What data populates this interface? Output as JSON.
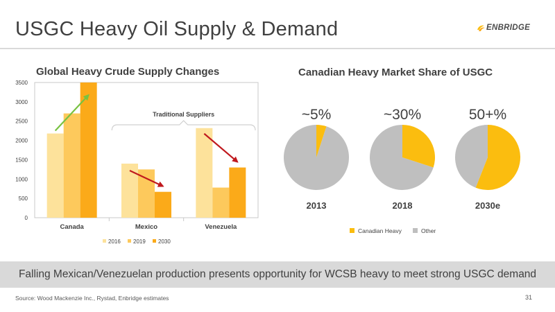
{
  "slide": {
    "title": "USGC Heavy Oil Supply & Demand",
    "logo_text": "ENBRIDGE",
    "banner": "Falling Mexican/Venezuelan production presents opportunity for WCSB heavy to meet strong USGC demand",
    "source": "Source: Wood Mackenzie Inc., Rystad, Enbridge estimates",
    "page_number": "31"
  },
  "colors": {
    "bar_2016": "#fde29b",
    "bar_2019": "#fdc95c",
    "bar_2030": "#fbaa19",
    "canadian_heavy": "#fbbd0f",
    "other": "#bfbfbf",
    "arrow_up": "#78c241",
    "arrow_down": "#c0191e"
  },
  "chart_data": [
    {
      "type": "bar",
      "title": "Global Heavy Crude Supply Changes",
      "categories": [
        "Canada",
        "Mexico",
        "Venezuela"
      ],
      "series": [
        {
          "name": "2016",
          "values": [
            2180,
            1400,
            2320
          ]
        },
        {
          "name": "2019",
          "values": [
            2700,
            1250,
            780
          ]
        },
        {
          "name": "2030",
          "values": [
            3500,
            670,
            1300
          ]
        }
      ],
      "ylim": [
        0,
        3500
      ],
      "yticks": [
        "0",
        "500",
        "1000",
        "1500",
        "2000",
        "2500",
        "3000",
        "3500"
      ],
      "legend_position": "bottom",
      "grid": false,
      "annotations": [
        {
          "text": "Traditional Suppliers"
        }
      ]
    },
    {
      "type": "pie",
      "title": "Canadian Heavy Market Share of USGC",
      "legend": [
        "Canadian Heavy",
        "Other"
      ],
      "legend_position": "bottom",
      "pies": [
        {
          "label": "2013",
          "share_label": "~5%",
          "canadian_heavy": 5,
          "other": 95
        },
        {
          "label": "2018",
          "share_label": "~30%",
          "canadian_heavy": 30,
          "other": 70
        },
        {
          "label": "2030e",
          "share_label": "50+%",
          "canadian_heavy": 56,
          "other": 44
        }
      ]
    }
  ]
}
